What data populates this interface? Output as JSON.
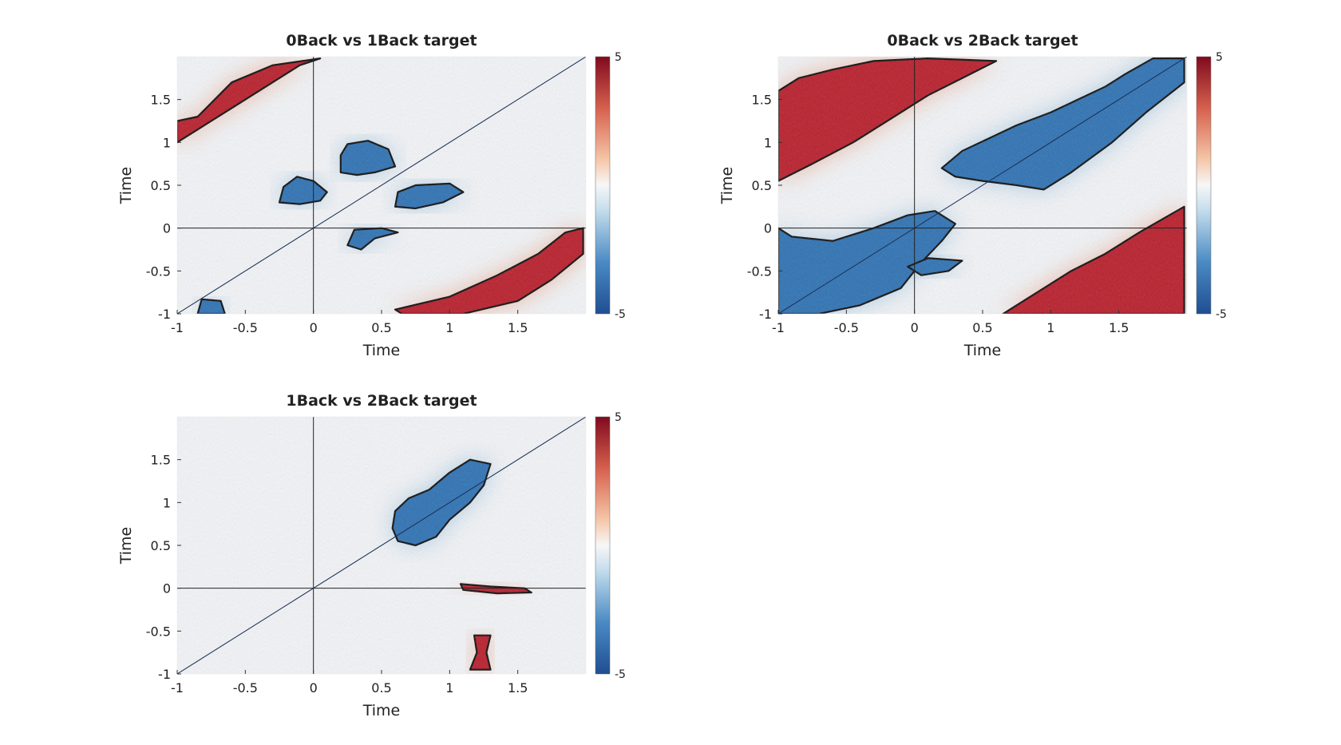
{
  "chart_data": [
    {
      "type": "heatmap",
      "title": "0Back vs 1Back target",
      "xlabel": "Time",
      "ylabel": "Time",
      "xlim": [
        -1,
        2
      ],
      "ylim": [
        -1,
        2
      ],
      "xticks": [
        -1,
        -0.5,
        0,
        0.5,
        1,
        1.5
      ],
      "yticks": [
        -1,
        -0.5,
        0,
        0.5,
        1,
        1.5
      ],
      "xtick_labels": [
        "-1",
        "-0.5",
        "0",
        "0.5",
        "1",
        "1.5"
      ],
      "ytick_labels": [
        "-1",
        "-0.5",
        "0",
        "0.5",
        "1",
        "1.5"
      ],
      "colorbar": {
        "min": -5,
        "max": 5,
        "min_label": "-5",
        "max_label": "5",
        "colormap": "blue-white-red"
      },
      "diagonal_line": true,
      "zero_lines": true,
      "regions": [
        {
          "sign": "positive",
          "polygon": [
            [
              -1.0,
              1.0
            ],
            [
              -0.8,
              1.2
            ],
            [
              -0.55,
              1.45
            ],
            [
              -0.3,
              1.7
            ],
            [
              -0.1,
              1.9
            ],
            [
              0.05,
              1.98
            ],
            [
              -0.3,
              1.9
            ],
            [
              -0.6,
              1.7
            ],
            [
              -0.85,
              1.3
            ],
            [
              -1.0,
              1.25
            ]
          ]
        },
        {
          "sign": "positive",
          "polygon": [
            [
              0.6,
              -0.95
            ],
            [
              1.0,
              -0.8
            ],
            [
              1.35,
              -0.55
            ],
            [
              1.65,
              -0.3
            ],
            [
              1.85,
              -0.05
            ],
            [
              1.98,
              0.0
            ],
            [
              1.98,
              -0.3
            ],
            [
              1.75,
              -0.6
            ],
            [
              1.5,
              -0.85
            ],
            [
              1.1,
              -1.0
            ],
            [
              0.65,
              -1.0
            ]
          ]
        },
        {
          "sign": "negative",
          "polygon": [
            [
              0.2,
              0.65
            ],
            [
              0.32,
              0.62
            ],
            [
              0.45,
              0.65
            ],
            [
              0.6,
              0.72
            ],
            [
              0.55,
              0.92
            ],
            [
              0.4,
              1.02
            ],
            [
              0.25,
              0.98
            ],
            [
              0.2,
              0.85
            ]
          ]
        },
        {
          "sign": "negative",
          "polygon": [
            [
              -0.25,
              0.3
            ],
            [
              -0.1,
              0.28
            ],
            [
              0.05,
              0.32
            ],
            [
              0.1,
              0.42
            ],
            [
              0.0,
              0.55
            ],
            [
              -0.12,
              0.6
            ],
            [
              -0.22,
              0.48
            ]
          ]
        },
        {
          "sign": "negative",
          "polygon": [
            [
              0.6,
              0.25
            ],
            [
              0.75,
              0.23
            ],
            [
              0.95,
              0.3
            ],
            [
              1.1,
              0.42
            ],
            [
              1.0,
              0.52
            ],
            [
              0.75,
              0.5
            ],
            [
              0.62,
              0.42
            ]
          ]
        },
        {
          "sign": "negative",
          "polygon": [
            [
              0.25,
              -0.2
            ],
            [
              0.35,
              -0.25
            ],
            [
              0.45,
              -0.12
            ],
            [
              0.62,
              -0.05
            ],
            [
              0.5,
              0.0
            ],
            [
              0.3,
              -0.02
            ]
          ]
        },
        {
          "sign": "negative",
          "polygon": [
            [
              -0.85,
              -1.0
            ],
            [
              -0.65,
              -1.0
            ],
            [
              -0.68,
              -0.85
            ],
            [
              -0.82,
              -0.83
            ]
          ]
        }
      ]
    },
    {
      "type": "heatmap",
      "title": "0Back vs 2Back target",
      "xlabel": "Time",
      "ylabel": "Time",
      "xlim": [
        -1,
        2
      ],
      "ylim": [
        -1,
        2
      ],
      "xticks": [
        -1,
        -0.5,
        0,
        0.5,
        1,
        1.5
      ],
      "yticks": [
        -1,
        -0.5,
        0,
        0.5,
        1,
        1.5
      ],
      "xtick_labels": [
        "-1",
        "-0.5",
        "0",
        "0.5",
        "1",
        "1.5"
      ],
      "ytick_labels": [
        "-1",
        "-0.5",
        "0",
        "0.5",
        "1",
        "1.5"
      ],
      "colorbar": {
        "min": -5,
        "max": 5,
        "min_label": "-5",
        "max_label": "5",
        "colormap": "blue-white-red"
      },
      "diagonal_line": true,
      "zero_lines": true,
      "regions": [
        {
          "sign": "positive",
          "polygon": [
            [
              -1.0,
              0.55
            ],
            [
              -0.75,
              0.75
            ],
            [
              -0.45,
              1.0
            ],
            [
              -0.15,
              1.3
            ],
            [
              0.1,
              1.55
            ],
            [
              0.35,
              1.75
            ],
            [
              0.6,
              1.95
            ],
            [
              0.1,
              1.98
            ],
            [
              -0.3,
              1.95
            ],
            [
              -0.6,
              1.85
            ],
            [
              -0.85,
              1.75
            ],
            [
              -1.0,
              1.6
            ]
          ]
        },
        {
          "sign": "positive",
          "polygon": [
            [
              0.65,
              -1.0
            ],
            [
              0.9,
              -0.75
            ],
            [
              1.15,
              -0.5
            ],
            [
              1.4,
              -0.3
            ],
            [
              1.65,
              -0.05
            ],
            [
              1.98,
              0.25
            ],
            [
              1.98,
              -1.0
            ]
          ]
        },
        {
          "sign": "negative",
          "polygon": [
            [
              0.2,
              0.7
            ],
            [
              0.35,
              0.9
            ],
            [
              0.55,
              1.05
            ],
            [
              0.75,
              1.2
            ],
            [
              1.0,
              1.35
            ],
            [
              1.2,
              1.5
            ],
            [
              1.4,
              1.65
            ],
            [
              1.55,
              1.8
            ],
            [
              1.75,
              1.98
            ],
            [
              1.98,
              1.98
            ],
            [
              1.98,
              1.7
            ],
            [
              1.7,
              1.35
            ],
            [
              1.45,
              1.0
            ],
            [
              1.15,
              0.65
            ],
            [
              0.95,
              0.45
            ],
            [
              0.75,
              0.5
            ],
            [
              0.5,
              0.55
            ],
            [
              0.3,
              0.6
            ]
          ]
        },
        {
          "sign": "negative",
          "polygon": [
            [
              -1.0,
              -1.0
            ],
            [
              -0.7,
              -1.0
            ],
            [
              -0.4,
              -0.9
            ],
            [
              -0.1,
              -0.7
            ],
            [
              0.05,
              -0.4
            ],
            [
              0.2,
              -0.15
            ],
            [
              0.3,
              0.05
            ],
            [
              0.15,
              0.2
            ],
            [
              -0.05,
              0.15
            ],
            [
              -0.3,
              0.0
            ],
            [
              -0.6,
              -0.15
            ],
            [
              -0.9,
              -0.1
            ],
            [
              -1.0,
              0.0
            ]
          ]
        },
        {
          "sign": "negative",
          "polygon": [
            [
              -0.05,
              -0.45
            ],
            [
              0.1,
              -0.35
            ],
            [
              0.35,
              -0.38
            ],
            [
              0.25,
              -0.5
            ],
            [
              0.05,
              -0.55
            ]
          ]
        }
      ]
    },
    {
      "type": "heatmap",
      "title": "1Back vs 2Back target",
      "xlabel": "Time",
      "ylabel": "Time",
      "xlim": [
        -1,
        2
      ],
      "ylim": [
        -1,
        2
      ],
      "xticks": [
        -1,
        -0.5,
        0,
        0.5,
        1,
        1.5
      ],
      "yticks": [
        -1,
        -0.5,
        0,
        0.5,
        1,
        1.5
      ],
      "xtick_labels": [
        "-1",
        "-0.5",
        "0",
        "0.5",
        "1",
        "1.5"
      ],
      "ytick_labels": [
        "-1",
        "-0.5",
        "0",
        "0.5",
        "1",
        "1.5"
      ],
      "colorbar": {
        "min": -5,
        "max": 5,
        "min_label": "-5",
        "max_label": "5",
        "colormap": "blue-white-red"
      },
      "diagonal_line": true,
      "zero_lines": true,
      "regions": [
        {
          "sign": "negative",
          "polygon": [
            [
              0.62,
              0.55
            ],
            [
              0.75,
              0.5
            ],
            [
              0.9,
              0.6
            ],
            [
              1.0,
              0.8
            ],
            [
              1.15,
              1.0
            ],
            [
              1.25,
              1.2
            ],
            [
              1.3,
              1.45
            ],
            [
              1.15,
              1.5
            ],
            [
              1.0,
              1.35
            ],
            [
              0.85,
              1.15
            ],
            [
              0.7,
              1.05
            ],
            [
              0.6,
              0.9
            ],
            [
              0.58,
              0.7
            ]
          ]
        },
        {
          "sign": "positive",
          "polygon": [
            [
              1.08,
              0.05
            ],
            [
              1.3,
              0.02
            ],
            [
              1.55,
              0.0
            ],
            [
              1.6,
              -0.05
            ],
            [
              1.35,
              -0.06
            ],
            [
              1.1,
              -0.02
            ]
          ]
        },
        {
          "sign": "positive",
          "polygon": [
            [
              1.15,
              -0.95
            ],
            [
              1.3,
              -0.95
            ],
            [
              1.27,
              -0.75
            ],
            [
              1.3,
              -0.55
            ],
            [
              1.18,
              -0.55
            ],
            [
              1.2,
              -0.75
            ]
          ]
        }
      ]
    }
  ]
}
